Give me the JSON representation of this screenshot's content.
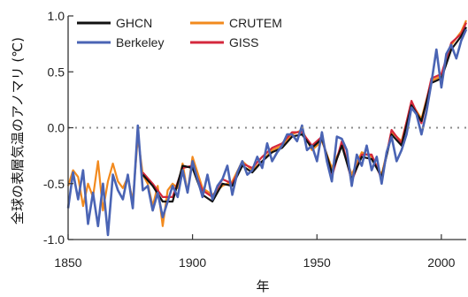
{
  "chart_data": {
    "type": "line",
    "xlabel": "年",
    "ylabel": "全球の表層気温のアノマリ (℃)",
    "xlim": [
      1850,
      2010
    ],
    "ylim": [
      -1.0,
      1.0
    ],
    "xticks": [
      "1850",
      "1900",
      "1950",
      "2000"
    ],
    "yticks": [
      "-1.0",
      "-0.5",
      "0.0",
      "0.5",
      "1.0"
    ],
    "zero_line": "dotted",
    "legend_position": "top-left",
    "series": [
      {
        "name": "GHCN",
        "color": "#111111",
        "x": [
          1880,
          1884,
          1888,
          1892,
          1896,
          1900,
          1904,
          1908,
          1912,
          1916,
          1920,
          1924,
          1928,
          1932,
          1936,
          1940,
          1944,
          1948,
          1952,
          1956,
          1960,
          1964,
          1968,
          1972,
          1976,
          1980,
          1984,
          1988,
          1992,
          1996,
          2000,
          2004,
          2008,
          2010
        ],
        "values": [
          -0.42,
          -0.52,
          -0.66,
          -0.66,
          -0.34,
          -0.36,
          -0.6,
          -0.66,
          -0.5,
          -0.52,
          -0.34,
          -0.4,
          -0.3,
          -0.22,
          -0.18,
          -0.08,
          -0.06,
          -0.18,
          -0.1,
          -0.4,
          -0.16,
          -0.46,
          -0.26,
          -0.28,
          -0.44,
          -0.06,
          -0.16,
          0.2,
          0.06,
          0.4,
          0.44,
          0.7,
          0.82,
          0.9
        ]
      },
      {
        "name": "CRUTEM",
        "color": "#f28a1e",
        "x": [
          1850,
          1852,
          1854,
          1856,
          1858,
          1860,
          1862,
          1864,
          1866,
          1868,
          1870,
          1872,
          1874,
          1876,
          1878,
          1880,
          1882,
          1884,
          1886,
          1888,
          1890,
          1892,
          1894,
          1896,
          1898,
          1900,
          1904,
          1908,
          1912,
          1916,
          1920,
          1924,
          1928,
          1932,
          1936,
          1940,
          1944,
          1948,
          1952,
          1956,
          1960,
          1964,
          1968,
          1972,
          1976,
          1980,
          1984,
          1988,
          1992,
          1996,
          2000,
          2004,
          2008,
          2010
        ],
        "values": [
          -0.52,
          -0.38,
          -0.44,
          -0.7,
          -0.5,
          -0.62,
          -0.3,
          -0.74,
          -0.48,
          -0.32,
          -0.48,
          -0.54,
          -0.44,
          -0.66,
          -0.08,
          -0.42,
          -0.5,
          -0.7,
          -0.52,
          -0.88,
          -0.56,
          -0.5,
          -0.54,
          -0.32,
          -0.58,
          -0.26,
          -0.54,
          -0.6,
          -0.52,
          -0.48,
          -0.3,
          -0.38,
          -0.3,
          -0.2,
          -0.16,
          -0.06,
          -0.02,
          -0.2,
          -0.12,
          -0.36,
          -0.16,
          -0.42,
          -0.22,
          -0.26,
          -0.42,
          -0.04,
          -0.12,
          0.22,
          0.08,
          0.42,
          0.46,
          0.74,
          0.86,
          0.96
        ]
      },
      {
        "name": "Berkeley",
        "color": "#4a64b4",
        "x": [
          1850,
          1852,
          1854,
          1856,
          1858,
          1860,
          1862,
          1864,
          1866,
          1868,
          1870,
          1872,
          1874,
          1876,
          1878,
          1880,
          1882,
          1884,
          1886,
          1888,
          1890,
          1892,
          1894,
          1896,
          1898,
          1900,
          1902,
          1904,
          1906,
          1908,
          1910,
          1912,
          1914,
          1916,
          1918,
          1920,
          1922,
          1924,
          1926,
          1928,
          1930,
          1932,
          1934,
          1936,
          1938,
          1940,
          1942,
          1944,
          1946,
          1948,
          1950,
          1952,
          1954,
          1956,
          1958,
          1960,
          1962,
          1964,
          1966,
          1968,
          1970,
          1972,
          1974,
          1976,
          1978,
          1980,
          1982,
          1984,
          1986,
          1988,
          1990,
          1992,
          1994,
          1996,
          1998,
          2000,
          2002,
          2004,
          2006,
          2008,
          2010
        ],
        "values": [
          -0.72,
          -0.4,
          -0.64,
          -0.38,
          -0.86,
          -0.58,
          -0.88,
          -0.5,
          -0.96,
          -0.42,
          -0.56,
          -0.64,
          -0.42,
          -0.72,
          0.02,
          -0.56,
          -0.52,
          -0.74,
          -0.58,
          -0.8,
          -0.66,
          -0.52,
          -0.62,
          -0.38,
          -0.58,
          -0.3,
          -0.46,
          -0.62,
          -0.42,
          -0.64,
          -0.52,
          -0.46,
          -0.34,
          -0.6,
          -0.4,
          -0.3,
          -0.42,
          -0.38,
          -0.26,
          -0.36,
          -0.14,
          -0.3,
          -0.22,
          -0.16,
          -0.06,
          -0.06,
          -0.12,
          0.02,
          -0.2,
          -0.16,
          -0.3,
          -0.04,
          -0.3,
          -0.48,
          -0.08,
          -0.1,
          -0.2,
          -0.52,
          -0.24,
          -0.34,
          -0.16,
          -0.38,
          -0.26,
          -0.5,
          -0.22,
          -0.08,
          -0.3,
          -0.2,
          -0.06,
          0.18,
          0.12,
          -0.06,
          0.14,
          0.4,
          0.7,
          0.36,
          0.66,
          0.74,
          0.62,
          0.78,
          0.88
        ]
      },
      {
        "name": "GISS",
        "color": "#d4283c",
        "x": [
          1880,
          1884,
          1888,
          1892,
          1896,
          1900,
          1904,
          1908,
          1912,
          1916,
          1920,
          1924,
          1928,
          1932,
          1936,
          1940,
          1944,
          1948,
          1952,
          1956,
          1960,
          1964,
          1968,
          1972,
          1976,
          1980,
          1984,
          1988,
          1992,
          1996,
          2000,
          2004,
          2008,
          2010
        ],
        "values": [
          -0.4,
          -0.5,
          -0.62,
          -0.62,
          -0.36,
          -0.34,
          -0.56,
          -0.62,
          -0.46,
          -0.5,
          -0.32,
          -0.36,
          -0.26,
          -0.18,
          -0.14,
          -0.04,
          -0.04,
          -0.16,
          -0.08,
          -0.44,
          -0.12,
          -0.48,
          -0.24,
          -0.24,
          -0.46,
          -0.02,
          -0.14,
          0.24,
          0.04,
          0.44,
          0.48,
          0.76,
          0.84,
          0.94
        ]
      }
    ]
  }
}
